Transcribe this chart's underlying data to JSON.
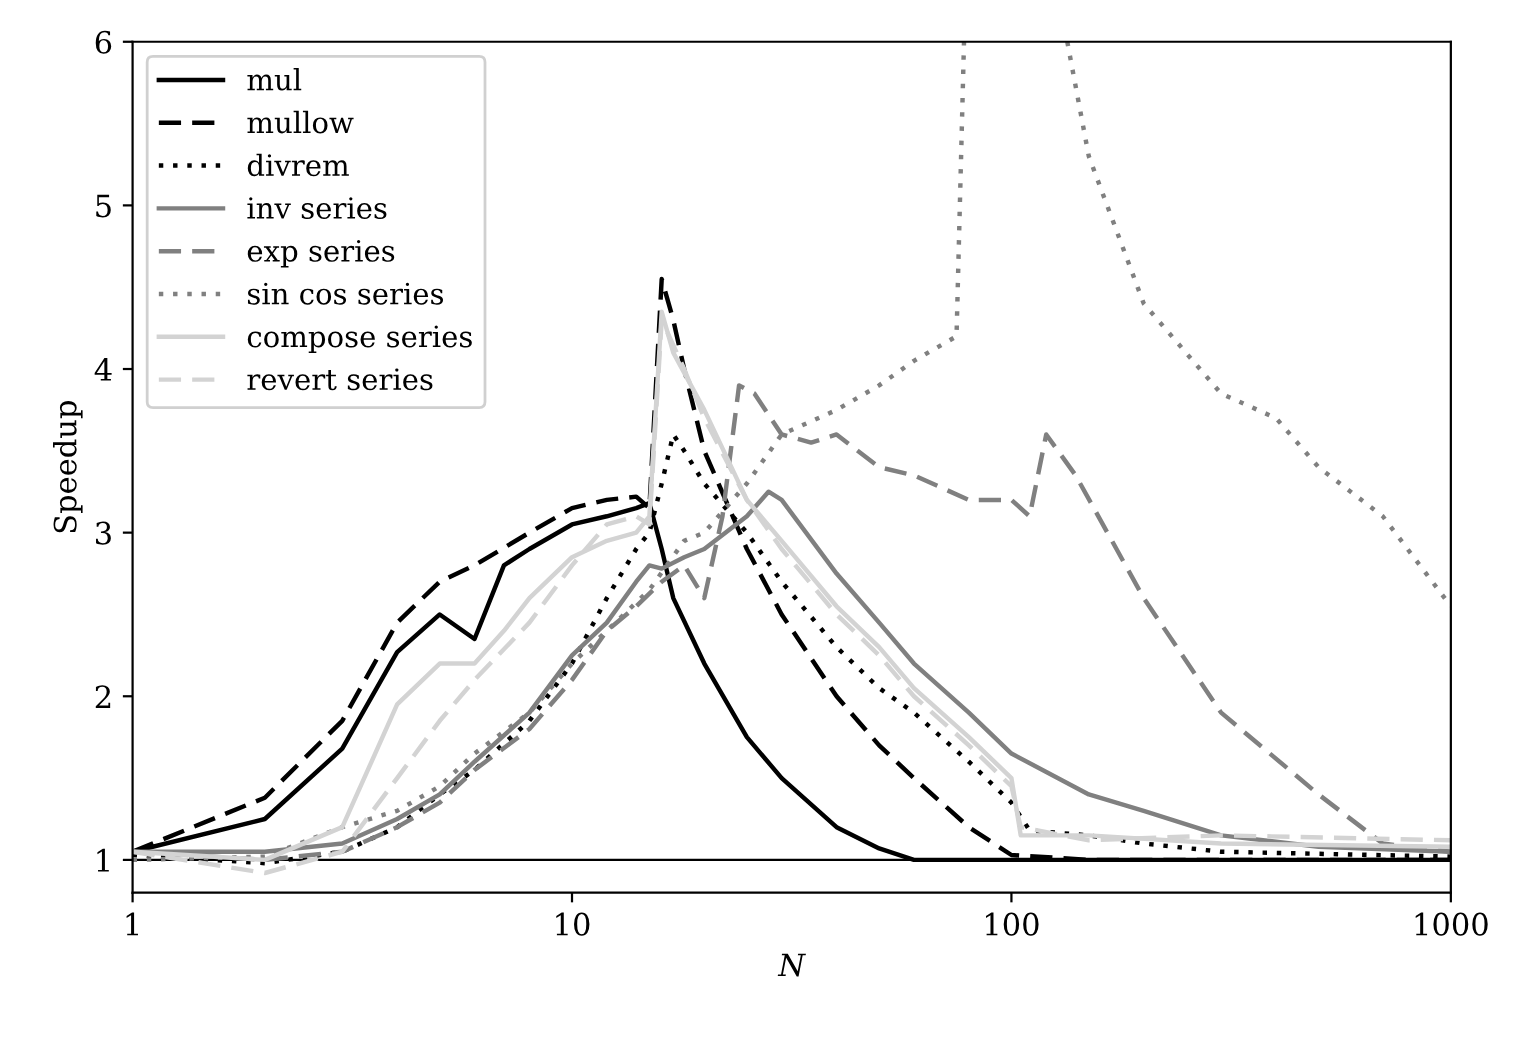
{
  "chart_data": {
    "type": "line",
    "xlabel": "N",
    "ylabel": "Speedup",
    "log": "x",
    "xlim": [
      1,
      1000
    ],
    "xticks": [
      1,
      10,
      100,
      1000
    ],
    "ylim": [
      0.8,
      6
    ],
    "yticks": [
      1,
      2,
      3,
      4,
      5,
      6
    ],
    "grid": false,
    "legend": "top left",
    "marker": "none",
    "ref_lines": [
      {
        "axis": "y",
        "value": 1,
        "color": "#000000",
        "line_style": "solid"
      }
    ],
    "series": [
      {
        "name": "mul",
        "color": "#000000",
        "line_style": "solid",
        "x": [
          1,
          2,
          3,
          4,
          5,
          6,
          7,
          8,
          10,
          12,
          14,
          15,
          16,
          17,
          20,
          25,
          30,
          40,
          50,
          60,
          80,
          100,
          150,
          1000
        ],
        "values": [
          1.05,
          1.25,
          1.68,
          2.27,
          2.5,
          2.35,
          2.8,
          2.9,
          3.05,
          3.1,
          3.15,
          3.18,
          2.9,
          2.6,
          2.2,
          1.75,
          1.5,
          1.2,
          1.07,
          1.0,
          1.0,
          1.0,
          1.0,
          1.0
        ]
      },
      {
        "name": "mullow",
        "color": "#000000",
        "line_style": "dashed",
        "x": [
          1,
          2,
          3,
          4,
          5,
          6,
          8,
          10,
          12,
          14,
          15,
          16,
          17,
          18,
          20,
          25,
          30,
          40,
          50,
          60,
          80,
          100,
          150,
          1000
        ],
        "values": [
          1.05,
          1.38,
          1.85,
          2.45,
          2.7,
          2.8,
          3.0,
          3.15,
          3.2,
          3.22,
          3.15,
          4.55,
          4.3,
          4.0,
          3.5,
          2.9,
          2.5,
          2.0,
          1.7,
          1.5,
          1.2,
          1.03,
          1.0,
          1.0
        ]
      },
      {
        "name": "divrem",
        "color": "#000000",
        "line_style": "dotted",
        "x": [
          1,
          2,
          3,
          4,
          5,
          6,
          8,
          10,
          12,
          14,
          15,
          16,
          17,
          18,
          20,
          25,
          30,
          40,
          50,
          60,
          80,
          100,
          110,
          150,
          200,
          300,
          1000
        ],
        "values": [
          1.03,
          0.98,
          1.05,
          1.2,
          1.4,
          1.55,
          1.85,
          2.2,
          2.6,
          2.9,
          3.0,
          3.3,
          3.6,
          3.5,
          3.3,
          3.0,
          2.7,
          2.3,
          2.05,
          1.9,
          1.6,
          1.35,
          1.18,
          1.15,
          1.1,
          1.05,
          1.02
        ]
      },
      {
        "name": "inv series",
        "color": "#808080",
        "line_style": "solid",
        "x": [
          1,
          2,
          3,
          4,
          5,
          6,
          8,
          10,
          12,
          14,
          15,
          16,
          18,
          20,
          25,
          28,
          30,
          40,
          50,
          60,
          80,
          100,
          150,
          200,
          300,
          500,
          1000
        ],
        "values": [
          1.05,
          1.05,
          1.1,
          1.25,
          1.4,
          1.6,
          1.9,
          2.25,
          2.45,
          2.7,
          2.8,
          2.78,
          2.85,
          2.9,
          3.1,
          3.25,
          3.2,
          2.75,
          2.45,
          2.2,
          1.9,
          1.65,
          1.4,
          1.3,
          1.15,
          1.08,
          1.05
        ]
      },
      {
        "name": "exp series",
        "color": "#808080",
        "line_style": "dashed",
        "x": [
          1,
          2,
          3,
          4,
          5,
          6,
          8,
          10,
          12,
          14,
          16,
          18,
          20,
          22,
          24,
          26,
          30,
          35,
          40,
          50,
          60,
          80,
          100,
          110,
          120,
          140,
          200,
          300,
          500,
          700,
          1000
        ],
        "values": [
          1.05,
          1.0,
          1.05,
          1.2,
          1.35,
          1.55,
          1.8,
          2.1,
          2.4,
          2.55,
          2.7,
          2.8,
          2.6,
          3.1,
          3.9,
          3.85,
          3.6,
          3.55,
          3.6,
          3.4,
          3.35,
          3.2,
          3.2,
          3.1,
          3.6,
          3.35,
          2.6,
          1.9,
          1.4,
          1.1,
          1.05
        ]
      },
      {
        "name": "sin cos series",
        "color": "#808080",
        "line_style": "dotted",
        "x": [
          1,
          2,
          3,
          4,
          5,
          6,
          8,
          10,
          12,
          15,
          18,
          20,
          25,
          30,
          40,
          50,
          60,
          75,
          78,
          100,
          134,
          150,
          200,
          300,
          400,
          500,
          700,
          1000
        ],
        "values": [
          1.0,
          1.02,
          1.2,
          1.3,
          1.45,
          1.65,
          1.9,
          2.2,
          2.4,
          2.65,
          2.95,
          3.0,
          3.3,
          3.6,
          3.75,
          3.9,
          4.05,
          4.2,
          6.0,
          null,
          6.0,
          5.3,
          4.4,
          3.85,
          3.7,
          3.4,
          3.1,
          2.55
        ]
      },
      {
        "name": "compose series",
        "color": "#d3d3d3",
        "line_style": "solid",
        "x": [
          1,
          2,
          3,
          4,
          5,
          6,
          7,
          8,
          10,
          12,
          14,
          15,
          16,
          17,
          20,
          25,
          30,
          40,
          50,
          60,
          80,
          100,
          105,
          150,
          300,
          1000
        ],
        "values": [
          1.05,
          1.0,
          1.2,
          1.95,
          2.2,
          2.2,
          2.4,
          2.6,
          2.85,
          2.95,
          3.0,
          3.1,
          4.35,
          4.1,
          3.75,
          3.2,
          2.95,
          2.55,
          2.3,
          2.05,
          1.75,
          1.5,
          1.15,
          1.15,
          1.1,
          1.08
        ]
      },
      {
        "name": "revert series",
        "color": "#d3d3d3",
        "line_style": "dashed",
        "x": [
          1,
          2,
          3,
          4,
          5,
          6,
          8,
          10,
          12,
          14,
          15,
          16,
          18,
          20,
          25,
          30,
          40,
          50,
          60,
          80,
          100,
          105,
          150,
          300,
          1000
        ],
        "values": [
          1.05,
          0.92,
          1.05,
          1.5,
          1.85,
          2.1,
          2.45,
          2.8,
          3.05,
          3.1,
          3.05,
          4.3,
          4.0,
          3.7,
          3.2,
          2.9,
          2.5,
          2.25,
          2.0,
          1.7,
          1.45,
          1.2,
          1.12,
          1.15,
          1.12
        ]
      }
    ]
  }
}
